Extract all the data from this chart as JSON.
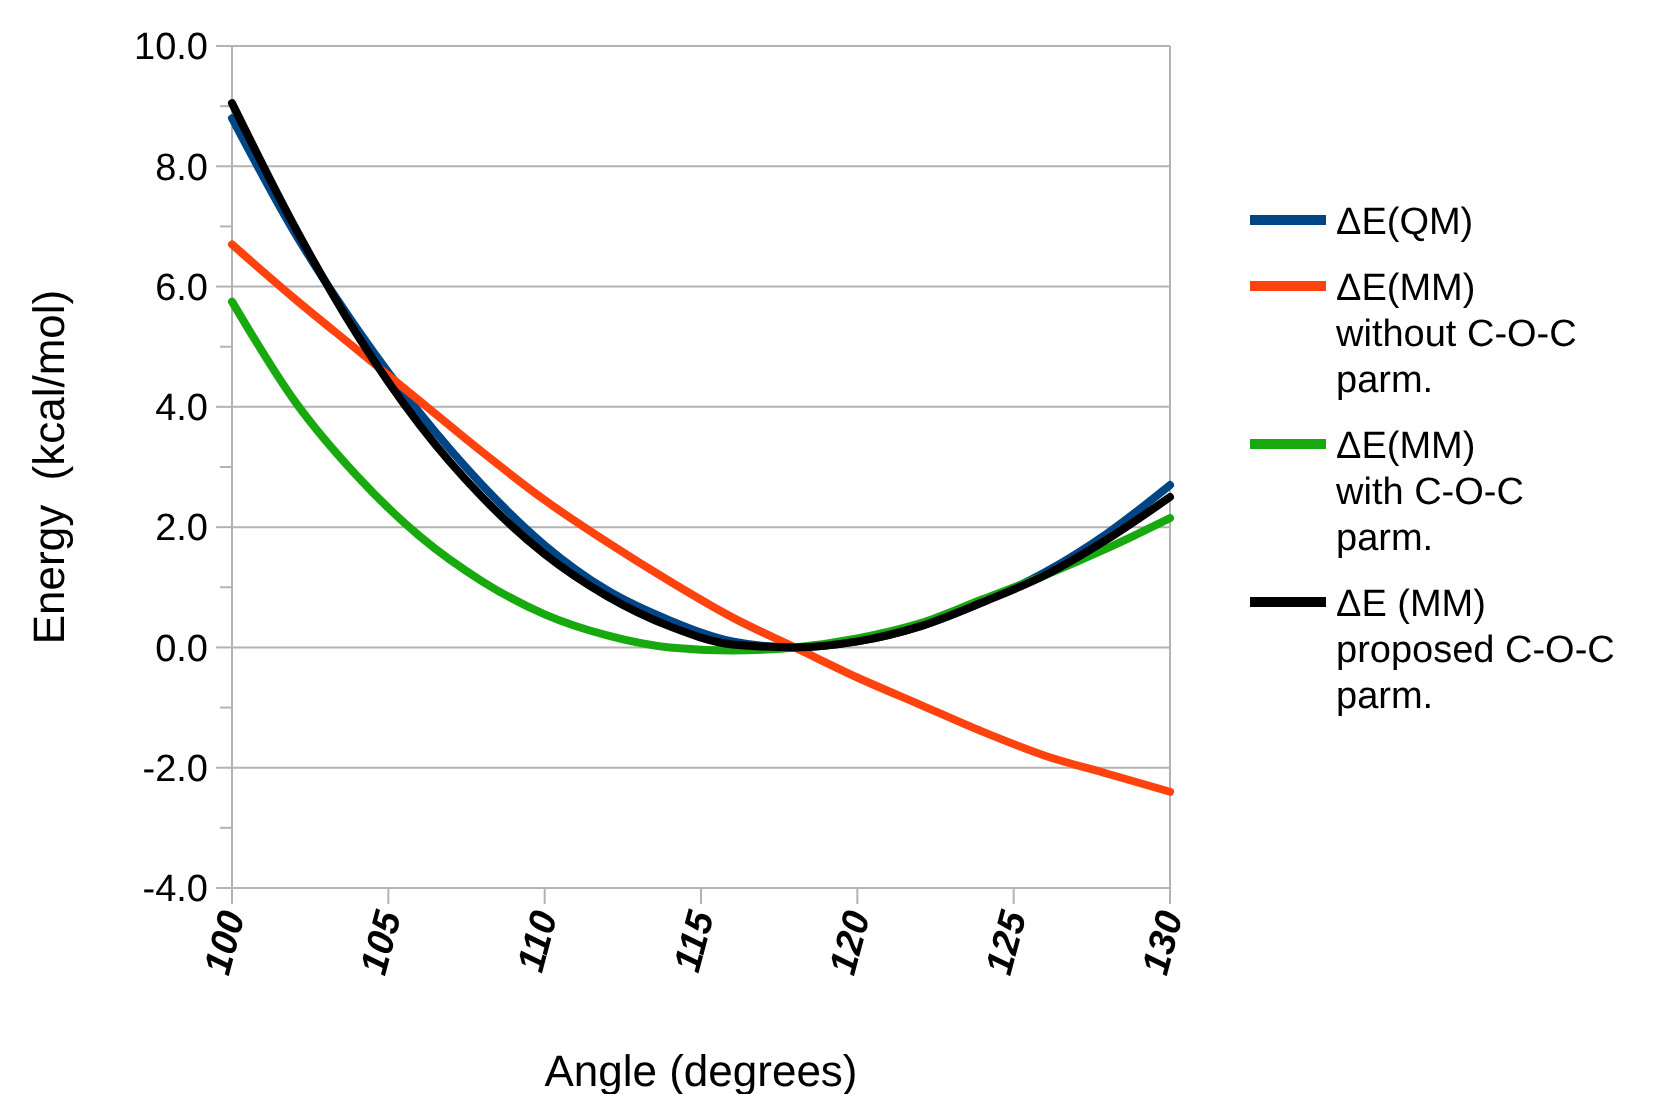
{
  "chart_data": {
    "type": "line",
    "xlabel": "Angle (degrees)",
    "ylabel": "Energy  (kcal/mol)",
    "x": [
      100,
      102,
      104,
      106,
      108,
      110,
      112,
      114,
      116,
      118,
      120,
      122,
      124,
      126,
      128,
      130
    ],
    "series": [
      {
        "name": "ΔE(QM)",
        "color": "#004586",
        "values": [
          8.8,
          6.9,
          5.3,
          3.9,
          2.7,
          1.7,
          0.95,
          0.45,
          0.1,
          0,
          0.1,
          0.35,
          0.75,
          1.25,
          1.9,
          2.7
        ]
      },
      {
        "name": "ΔE(MM) without C-O-C parm.",
        "color": "#ff420e",
        "values": [
          6.7,
          5.8,
          4.95,
          4.1,
          3.25,
          2.45,
          1.75,
          1.1,
          0.5,
          0,
          -0.5,
          -0.95,
          -1.4,
          -1.8,
          -2.1,
          -2.4
        ]
      },
      {
        "name": "ΔE(MM) with C-O-C parm.",
        "color": "#17a90e",
        "values": [
          5.75,
          4.1,
          2.85,
          1.85,
          1.1,
          0.55,
          0.2,
          0,
          -0.05,
          0,
          0.15,
          0.4,
          0.8,
          1.2,
          1.65,
          2.15
        ]
      },
      {
        "name": "ΔE (MM) proposed C-O-C parm.",
        "color": "#000000",
        "values": [
          9.05,
          7.0,
          5.2,
          3.7,
          2.5,
          1.55,
          0.85,
          0.35,
          0.05,
          0,
          0.1,
          0.35,
          0.75,
          1.2,
          1.8,
          2.5
        ]
      }
    ],
    "xlim": [
      100,
      130
    ],
    "xticks": [
      100,
      105,
      110,
      115,
      120,
      125,
      130
    ],
    "ylim": [
      -4,
      10
    ],
    "yticks": [
      {
        "value": -4,
        "label": "-4.0"
      },
      {
        "value": -3,
        "label": null
      },
      {
        "value": -2,
        "label": "-2.0"
      },
      {
        "value": -1,
        "label": null
      },
      {
        "value": 0,
        "label": "0.0"
      },
      {
        "value": 1,
        "label": null
      },
      {
        "value": 2,
        "label": "2.0"
      },
      {
        "value": 3,
        "label": null
      },
      {
        "value": 4,
        "label": "4.0"
      },
      {
        "value": 5,
        "label": null
      },
      {
        "value": 6,
        "label": "6.0"
      },
      {
        "value": 7,
        "label": null
      },
      {
        "value": 8,
        "label": "8.0"
      },
      {
        "value": 9,
        "label": null
      },
      {
        "value": 10,
        "label": "10.0"
      }
    ],
    "grid": "y",
    "legend": "right",
    "marker": "none",
    "line_style": "solid"
  }
}
